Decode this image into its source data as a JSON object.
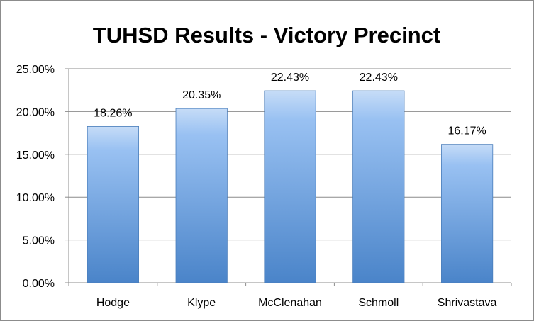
{
  "chart_data": {
    "type": "bar",
    "title": "TUHSD Results - Victory Precinct",
    "categories": [
      "Hodge",
      "Klype",
      "McClenahan",
      "Schmoll",
      "Shrivastava"
    ],
    "values": [
      18.26,
      20.35,
      22.43,
      22.43,
      16.17
    ],
    "value_labels": [
      "18.26%",
      "20.35%",
      "22.43%",
      "22.43%",
      "16.17%"
    ],
    "yticks": [
      0,
      5,
      10,
      15,
      20,
      25
    ],
    "ytick_labels": [
      "0.00%",
      "5.00%",
      "10.00%",
      "15.00%",
      "20.00%",
      "25.00%"
    ],
    "ylim": [
      0,
      25
    ],
    "xlabel": "",
    "ylabel": "",
    "grid": true,
    "legend": false,
    "colors": {
      "bar_top": "#c6dcf7",
      "bar_mid": "#99c1f2",
      "bar_bottom": "#4a84c9",
      "bar_border": "#4a7ebb",
      "grid": "#8c8c8c"
    }
  }
}
